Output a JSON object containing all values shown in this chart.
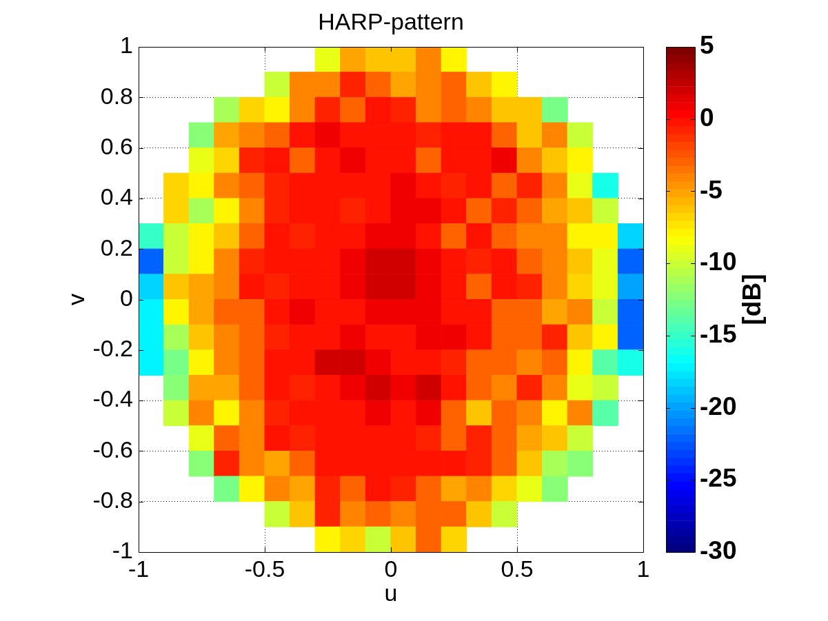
{
  "chart_data": {
    "type": "scatter",
    "title": "HARP-pattern",
    "xlabel": "u",
    "ylabel": "v",
    "clabel": "[dB]",
    "marker": "square",
    "grid": true,
    "xlim": [
      -1,
      1
    ],
    "ylim": [
      -1,
      1
    ],
    "xticks": [
      -1,
      -0.5,
      0,
      0.5,
      1
    ],
    "yticks": [
      -1,
      -0.8,
      -0.6,
      -0.4,
      -0.2,
      0,
      0.2,
      0.4,
      0.6,
      0.8,
      1
    ],
    "clim": [
      -30,
      5
    ],
    "cticks": [
      -30,
      -25,
      -20,
      -15,
      -10,
      -5,
      0,
      5
    ],
    "x": [
      -0.25,
      -0.15,
      -0.05,
      0.05,
      0.15,
      0.25,
      -0.45,
      -0.35,
      -0.25,
      -0.15,
      -0.05,
      0.05,
      0.15,
      0.25,
      0.35,
      0.45,
      -0.65,
      -0.55,
      -0.45,
      -0.35,
      -0.25,
      -0.15,
      -0.05,
      0.05,
      0.15,
      0.25,
      0.35,
      0.45,
      0.55,
      0.65,
      -0.75,
      -0.65,
      -0.55,
      -0.45,
      -0.35,
      -0.25,
      -0.15,
      -0.05,
      0.05,
      0.15,
      0.25,
      0.35,
      0.45,
      0.55,
      0.65,
      0.75,
      -0.75,
      -0.65,
      -0.55,
      -0.45,
      -0.35,
      -0.25,
      -0.15,
      -0.05,
      0.05,
      0.15,
      0.25,
      0.35,
      0.45,
      0.55,
      0.65,
      0.75,
      -0.85,
      -0.75,
      -0.65,
      -0.55,
      -0.45,
      -0.35,
      -0.25,
      -0.15,
      -0.05,
      0.05,
      0.15,
      0.25,
      0.35,
      0.45,
      0.55,
      0.65,
      0.75,
      0.85,
      -0.85,
      -0.75,
      -0.65,
      -0.55,
      -0.45,
      -0.35,
      -0.25,
      -0.15,
      -0.05,
      0.05,
      0.15,
      0.25,
      0.35,
      0.45,
      0.55,
      0.65,
      0.75,
      0.85,
      -0.95,
      -0.85,
      -0.75,
      -0.65,
      -0.55,
      -0.45,
      -0.35,
      -0.25,
      -0.15,
      -0.05,
      0.05,
      0.15,
      0.25,
      0.35,
      0.45,
      0.55,
      0.65,
      0.75,
      0.85,
      0.95,
      -0.95,
      -0.85,
      -0.75,
      -0.65,
      -0.55,
      -0.45,
      -0.35,
      -0.25,
      -0.15,
      -0.05,
      0.05,
      0.15,
      0.25,
      0.35,
      0.45,
      0.55,
      0.65,
      0.75,
      0.85,
      0.95,
      -0.95,
      -0.85,
      -0.75,
      -0.65,
      -0.55,
      -0.45,
      -0.35,
      -0.25,
      -0.15,
      -0.05,
      0.05,
      0.15,
      0.25,
      0.35,
      0.45,
      0.55,
      0.65,
      0.75,
      0.85,
      0.95,
      -0.95,
      -0.85,
      -0.75,
      -0.65,
      -0.55,
      -0.45,
      -0.35,
      -0.25,
      -0.15,
      -0.05,
      0.05,
      0.15,
      0.25,
      0.35,
      0.45,
      0.55,
      0.65,
      0.75,
      0.85,
      0.95,
      -0.95,
      -0.85,
      -0.75,
      -0.65,
      -0.55,
      -0.45,
      -0.35,
      -0.25,
      -0.15,
      -0.05,
      0.05,
      0.15,
      0.25,
      0.35,
      0.45,
      0.55,
      0.65,
      0.75,
      0.85,
      0.95,
      -0.95,
      -0.85,
      -0.75,
      -0.65,
      -0.55,
      -0.45,
      -0.35,
      -0.25,
      -0.15,
      -0.05,
      0.05,
      0.15,
      0.25,
      0.35,
      0.45,
      0.55,
      0.65,
      0.75,
      0.85,
      0.95,
      -0.85,
      -0.75,
      -0.65,
      -0.55,
      -0.45,
      -0.35,
      -0.25,
      -0.15,
      -0.05,
      0.05,
      0.15,
      0.25,
      0.35,
      0.45,
      0.55,
      0.65,
      0.75,
      0.85,
      -0.85,
      -0.75,
      -0.65,
      -0.55,
      -0.45,
      -0.35,
      -0.25,
      -0.15,
      -0.05,
      0.05,
      0.15,
      0.25,
      0.35,
      0.45,
      0.55,
      0.65,
      0.75,
      0.85,
      -0.75,
      -0.65,
      -0.55,
      -0.45,
      -0.35,
      -0.25,
      -0.15,
      -0.05,
      0.05,
      0.15,
      0.25,
      0.35,
      0.45,
      0.55,
      0.65,
      0.75,
      -0.75,
      -0.65,
      -0.55,
      -0.45,
      -0.35,
      -0.25,
      -0.15,
      -0.05,
      0.05,
      0.15,
      0.25,
      0.35,
      0.45,
      0.55,
      0.65,
      0.75,
      -0.65,
      -0.55,
      -0.45,
      -0.35,
      -0.25,
      -0.15,
      -0.05,
      0.05,
      0.15,
      0.25,
      0.35,
      0.45,
      0.55,
      0.65,
      -0.45,
      -0.35,
      -0.25,
      -0.15,
      -0.05,
      0.05,
      0.15,
      0.25,
      0.35,
      0.45,
      -0.25,
      -0.15,
      -0.05,
      0.05,
      0.15,
      0.25
    ],
    "values": [
      0.95,
      0.95,
      0.95,
      0.95,
      0.95,
      0.95,
      0.85,
      0.85,
      0.85,
      0.85,
      0.85,
      0.85,
      0.85,
      0.85,
      0.85,
      0.85,
      0.75,
      0.75,
      0.75,
      0.75,
      0.75,
      0.75,
      0.75,
      0.75,
      0.75,
      0.75,
      0.75,
      0.75,
      0.75,
      0.75,
      0.65,
      0.65,
      0.65,
      0.65,
      0.65,
      0.65,
      0.65,
      0.65,
      0.65,
      0.65,
      0.65,
      0.65,
      0.65,
      0.65,
      0.65,
      0.65,
      0.55,
      0.55,
      0.55,
      0.55,
      0.55,
      0.55,
      0.55,
      0.55,
      0.55,
      0.55,
      0.55,
      0.55,
      0.55,
      0.55,
      0.55,
      0.55,
      0.45,
      0.45,
      0.45,
      0.45,
      0.45,
      0.45,
      0.45,
      0.45,
      0.45,
      0.45,
      0.45,
      0.45,
      0.45,
      0.45,
      0.45,
      0.45,
      0.45,
      0.45,
      0.35,
      0.35,
      0.35,
      0.35,
      0.35,
      0.35,
      0.35,
      0.35,
      0.35,
      0.35,
      0.35,
      0.35,
      0.35,
      0.35,
      0.35,
      0.35,
      0.35,
      0.35,
      0.25,
      0.25,
      0.25,
      0.25,
      0.25,
      0.25,
      0.25,
      0.25,
      0.25,
      0.25,
      0.25,
      0.25,
      0.25,
      0.25,
      0.25,
      0.25,
      0.25,
      0.25,
      0.25,
      0.25,
      0.15,
      0.15,
      0.15,
      0.15,
      0.15,
      0.15,
      0.15,
      0.15,
      0.15,
      0.15,
      0.15,
      0.15,
      0.15,
      0.15,
      0.15,
      0.15,
      0.15,
      0.15,
      0.15,
      0.15,
      0.05,
      0.05,
      0.05,
      0.05,
      0.05,
      0.05,
      0.05,
      0.05,
      0.05,
      0.05,
      0.05,
      0.05,
      0.05,
      0.05,
      0.05,
      0.05,
      0.05,
      0.05,
      0.05,
      0.05,
      -0.05,
      -0.05,
      -0.05,
      -0.05,
      -0.05,
      -0.05,
      -0.05,
      -0.05,
      -0.05,
      -0.05,
      -0.05,
      -0.05,
      -0.05,
      -0.05,
      -0.05,
      -0.05,
      -0.05,
      -0.05,
      -0.05,
      -0.05,
      -0.15,
      -0.15,
      -0.15,
      -0.15,
      -0.15,
      -0.15,
      -0.15,
      -0.15,
      -0.15,
      -0.15,
      -0.15,
      -0.15,
      -0.15,
      -0.15,
      -0.15,
      -0.15,
      -0.15,
      -0.15,
      -0.15,
      -0.15,
      -0.25,
      -0.25,
      -0.25,
      -0.25,
      -0.25,
      -0.25,
      -0.25,
      -0.25,
      -0.25,
      -0.25,
      -0.25,
      -0.25,
      -0.25,
      -0.25,
      -0.25,
      -0.25,
      -0.25,
      -0.25,
      -0.25,
      -0.25,
      -0.35,
      -0.35,
      -0.35,
      -0.35,
      -0.35,
      -0.35,
      -0.35,
      -0.35,
      -0.35,
      -0.35,
      -0.35,
      -0.35,
      -0.35,
      -0.35,
      -0.35,
      -0.35,
      -0.35,
      -0.35,
      -0.45,
      -0.45,
      -0.45,
      -0.45,
      -0.45,
      -0.45,
      -0.45,
      -0.45,
      -0.45,
      -0.45,
      -0.45,
      -0.45,
      -0.45,
      -0.45,
      -0.45,
      -0.45,
      -0.45,
      -0.45,
      -0.55,
      -0.55,
      -0.55,
      -0.55,
      -0.55,
      -0.55,
      -0.55,
      -0.55,
      -0.55,
      -0.55,
      -0.55,
      -0.55,
      -0.55,
      -0.55,
      -0.55,
      -0.55,
      -0.65,
      -0.65,
      -0.65,
      -0.65,
      -0.65,
      -0.65,
      -0.65,
      -0.65,
      -0.65,
      -0.65,
      -0.65,
      -0.65,
      -0.65,
      -0.65,
      -0.65,
      -0.65,
      -0.75,
      -0.75,
      -0.75,
      -0.75,
      -0.75,
      -0.75,
      -0.75,
      -0.75,
      -0.75,
      -0.75,
      -0.75,
      -0.75,
      -0.75,
      -0.75,
      -0.85,
      -0.85,
      -0.85,
      -0.85,
      -0.85,
      -0.85,
      -0.85,
      -0.85,
      -0.85,
      -0.85,
      -0.95,
      -0.95,
      -0.95,
      -0.95,
      -0.95,
      -0.95
    ],
    "cvalues": [
      -9,
      -5,
      -6,
      -6,
      -4,
      -8,
      -10,
      -4,
      -4,
      -1,
      -3,
      -5,
      -4,
      -3,
      -6,
      -8,
      -11,
      -7,
      -8,
      -4,
      -1,
      -3,
      0,
      -1,
      -4,
      -3,
      -4,
      -6,
      -6,
      -13,
      -12,
      -5,
      -4,
      -3,
      0,
      1,
      0,
      0,
      0,
      -1,
      0,
      0,
      -3,
      -6,
      -4,
      -10,
      -9,
      -7,
      -1,
      0,
      -3,
      0,
      1,
      0,
      0,
      -3,
      0,
      0,
      1,
      -4,
      -6,
      -8,
      -7,
      -8,
      -4,
      -3,
      -1,
      0,
      0,
      0,
      0,
      1,
      0,
      -1,
      0,
      -3,
      -1,
      -4,
      -9,
      -16,
      -7,
      -11,
      -8,
      -4,
      -1,
      0,
      0,
      -1,
      0,
      1,
      1,
      0,
      -3,
      -1,
      -3,
      -5,
      -6,
      -10,
      -15,
      -10,
      -8,
      -6,
      -3,
      0,
      -1,
      0,
      0,
      1,
      1,
      0,
      -3,
      0,
      -3,
      -4,
      -4,
      -8,
      -8,
      -18,
      -22,
      -10,
      -8,
      -4,
      -1,
      0,
      0,
      0,
      1,
      2,
      2,
      1,
      0,
      -1,
      0,
      -3,
      -4,
      -6,
      -9,
      -22,
      -18,
      -6,
      -5,
      -4,
      0,
      -1,
      0,
      0,
      1,
      2,
      2,
      1,
      0,
      -3,
      0,
      -1,
      -4,
      -7,
      -9,
      -20,
      -17,
      -8,
      -5,
      -3,
      -3,
      0,
      1,
      0,
      0,
      1,
      1,
      1,
      0,
      0,
      -3,
      -3,
      -5,
      -4,
      -10,
      -22,
      -17,
      -11,
      -6,
      -4,
      -3,
      -1,
      0,
      0,
      1,
      0,
      0,
      1,
      1,
      0,
      -3,
      -3,
      -1,
      -6,
      -8,
      -22,
      -17,
      -13,
      -8,
      -4,
      -3,
      0,
      0,
      2,
      2,
      1,
      0,
      0,
      -1,
      -3,
      -3,
      -4,
      -3,
      -8,
      -14,
      -16,
      -12,
      -5,
      -5,
      -3,
      0,
      -1,
      0,
      1,
      2,
      1,
      2,
      0,
      -3,
      -4,
      -1,
      -4,
      -9,
      -10,
      -10,
      -4,
      -8,
      -4,
      -1,
      0,
      0,
      0,
      1,
      0,
      1,
      -3,
      -6,
      -3,
      -4,
      -8,
      -4,
      -14,
      -9,
      -3,
      -4,
      0,
      -1,
      0,
      0,
      0,
      0,
      -1,
      -3,
      -1,
      -3,
      -5,
      -6,
      -10,
      -12,
      -1,
      -4,
      -5,
      -3,
      0,
      0,
      0,
      0,
      0,
      0,
      -1,
      -3,
      -6,
      -11,
      -12,
      -13,
      -8,
      -4,
      -5,
      -1,
      -3,
      0,
      -1,
      -3,
      -5,
      -4,
      -7,
      -9,
      -12,
      -10,
      -6,
      -1,
      -4,
      -3,
      -4,
      -3,
      -3,
      -6,
      -10,
      -8,
      -7,
      -10,
      -6,
      -3,
      -7
    ]
  }
}
